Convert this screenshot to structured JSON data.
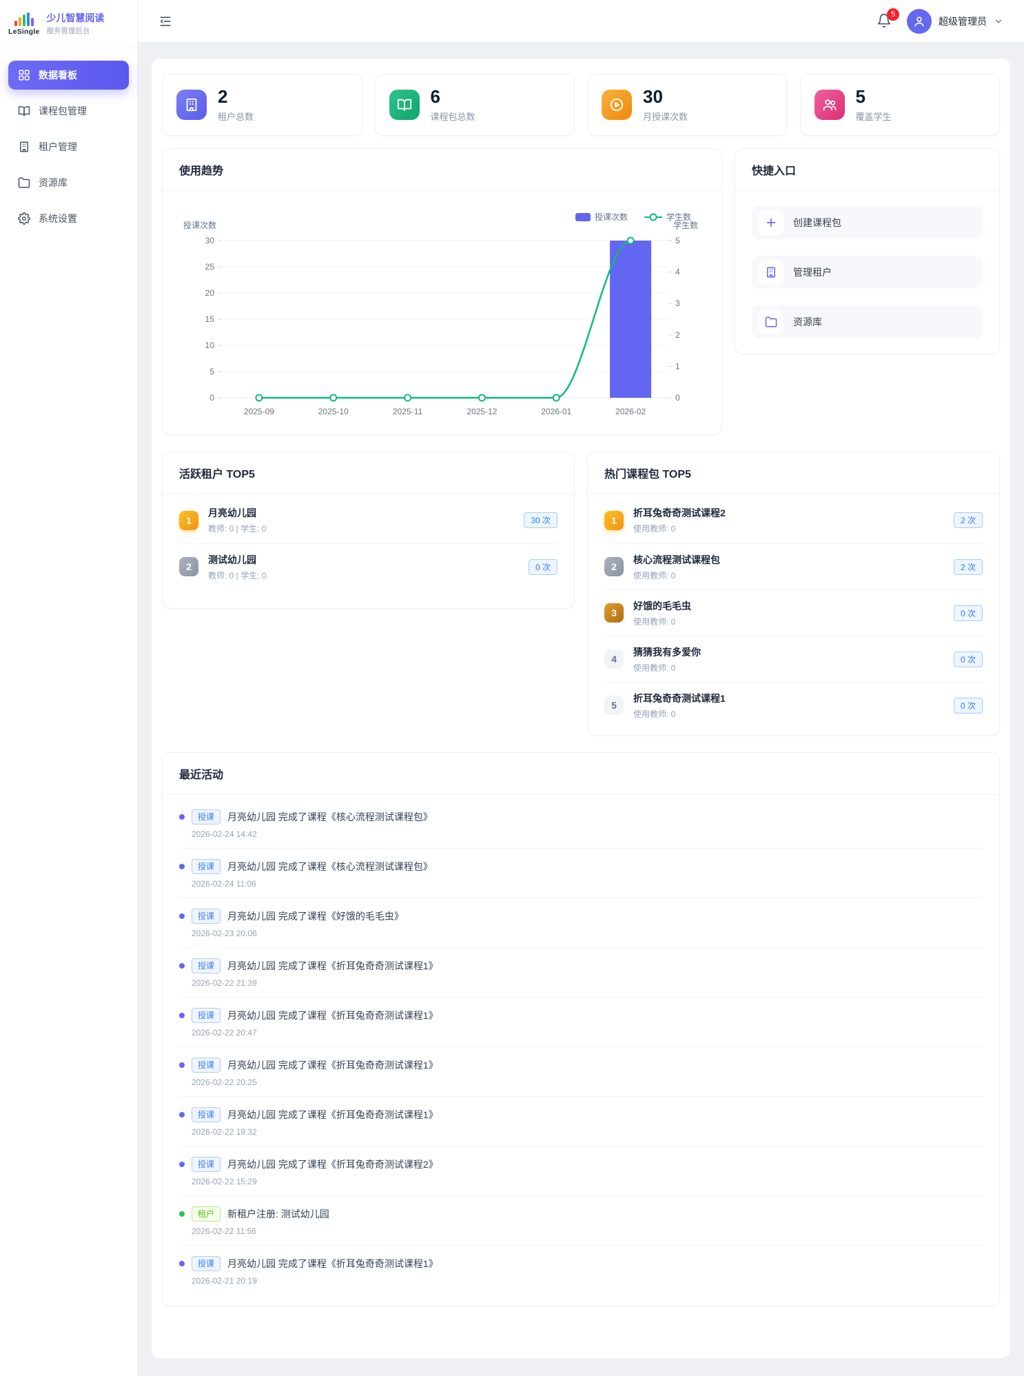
{
  "brand": {
    "logo_text": "LeSingle",
    "title": "少儿智慧阅读",
    "subtitle": "服务管理后台"
  },
  "sidebar": {
    "items": [
      {
        "label": "数据看板",
        "icon": "dashboard-icon",
        "active": true
      },
      {
        "label": "课程包管理",
        "icon": "book-icon",
        "active": false
      },
      {
        "label": "租户管理",
        "icon": "building-icon",
        "active": false
      },
      {
        "label": "资源库",
        "icon": "folder-icon",
        "active": false
      },
      {
        "label": "系统设置",
        "icon": "gear-icon",
        "active": false
      }
    ]
  },
  "header": {
    "notification_count": "5",
    "user_name": "超级管理员"
  },
  "stats": [
    {
      "value": "2",
      "label": "租户总数",
      "icon": "building-icon",
      "color": "#6366f1"
    },
    {
      "value": "6",
      "label": "课程包总数",
      "icon": "book-icon",
      "color": "#10b981"
    },
    {
      "value": "30",
      "label": "月授课次数",
      "icon": "play-circle-icon",
      "color": "#f59e0b"
    },
    {
      "value": "5",
      "label": "覆盖学生",
      "icon": "students-icon",
      "color": "#e8447c"
    }
  ],
  "chart_card": {
    "title": "使用趋势"
  },
  "chart_data": {
    "type": "bar",
    "categories": [
      "2025-09",
      "2025-10",
      "2025-11",
      "2025-12",
      "2026-01",
      "2026-02"
    ],
    "series": [
      {
        "name": "授课次数",
        "type": "bar",
        "axis": "left",
        "values": [
          0,
          0,
          0,
          0,
          0,
          30
        ],
        "color": "#6366f1"
      },
      {
        "name": "学生数",
        "type": "line",
        "axis": "right",
        "values": [
          0,
          0,
          0,
          0,
          0,
          5
        ],
        "color": "#10b981"
      }
    ],
    "left_axis": {
      "name": "授课次数",
      "min": 0,
      "max": 30,
      "step": 5
    },
    "right_axis": {
      "name": "学生数",
      "min": 0,
      "max": 5,
      "step": 1
    },
    "legend_position": "top-right",
    "grid": true
  },
  "quick_entry": {
    "title": "快捷入口",
    "items": [
      {
        "label": "创建课程包",
        "icon": "plus-icon"
      },
      {
        "label": "管理租户",
        "icon": "building-icon"
      },
      {
        "label": "资源库",
        "icon": "folder-icon"
      }
    ]
  },
  "active_tenants": {
    "title": "活跃租户 TOP5",
    "items": [
      {
        "rank": "1",
        "name": "月亮幼儿园",
        "meta": "教师: 0 | 学生: 0",
        "count": "30 次"
      },
      {
        "rank": "2",
        "name": "测试幼儿园",
        "meta": "教师: 0 | 学生: 0",
        "count": "0 次"
      }
    ]
  },
  "hot_packages": {
    "title": "热门课程包 TOP5",
    "items": [
      {
        "rank": "1",
        "name": "折耳兔奇奇测试课程2",
        "meta": "使用教师: 0",
        "count": "2 次"
      },
      {
        "rank": "2",
        "name": "核心流程测试课程包",
        "meta": "使用教师: 0",
        "count": "2 次"
      },
      {
        "rank": "3",
        "name": "好饿的毛毛虫",
        "meta": "使用教师: 0",
        "count": "0 次"
      },
      {
        "rank": "4",
        "name": "猜猜我有多爱你",
        "meta": "使用教师: 0",
        "count": "0 次"
      },
      {
        "rank": "5",
        "name": "折耳兔奇奇测试课程1",
        "meta": "使用教师: 0",
        "count": "0 次"
      }
    ]
  },
  "activities": {
    "title": "最近活动",
    "items": [
      {
        "tag": "授课",
        "type": "lesson",
        "text": "月亮幼儿园 完成了课程《核心流程测试课程包》",
        "time": "2026-02-24 14:42"
      },
      {
        "tag": "授课",
        "type": "lesson",
        "text": "月亮幼儿园 完成了课程《核心流程测试课程包》",
        "time": "2026-02-24 11:06"
      },
      {
        "tag": "授课",
        "type": "lesson",
        "text": "月亮幼儿园 完成了课程《好饿的毛毛虫》",
        "time": "2026-02-23 20:06"
      },
      {
        "tag": "授课",
        "type": "lesson",
        "text": "月亮幼儿园 完成了课程《折耳兔奇奇测试课程1》",
        "time": "2026-02-22 21:39"
      },
      {
        "tag": "授课",
        "type": "lesson",
        "text": "月亮幼儿园 完成了课程《折耳兔奇奇测试课程1》",
        "time": "2026-02-22 20:47"
      },
      {
        "tag": "授课",
        "type": "lesson",
        "text": "月亮幼儿园 完成了课程《折耳兔奇奇测试课程1》",
        "time": "2026-02-22 20:25"
      },
      {
        "tag": "授课",
        "type": "lesson",
        "text": "月亮幼儿园 完成了课程《折耳兔奇奇测试课程1》",
        "time": "2026-02-22 19:32"
      },
      {
        "tag": "授课",
        "type": "lesson",
        "text": "月亮幼儿园 完成了课程《折耳兔奇奇测试课程2》",
        "time": "2026-02-22 15:29"
      },
      {
        "tag": "租户",
        "type": "tenant",
        "text": "新租户注册: 测试幼儿园",
        "time": "2026-02-22 11:56"
      },
      {
        "tag": "授课",
        "type": "lesson",
        "text": "月亮幼儿园 完成了课程《折耳兔奇奇测试课程1》",
        "time": "2026-02-21 20:19"
      }
    ]
  }
}
